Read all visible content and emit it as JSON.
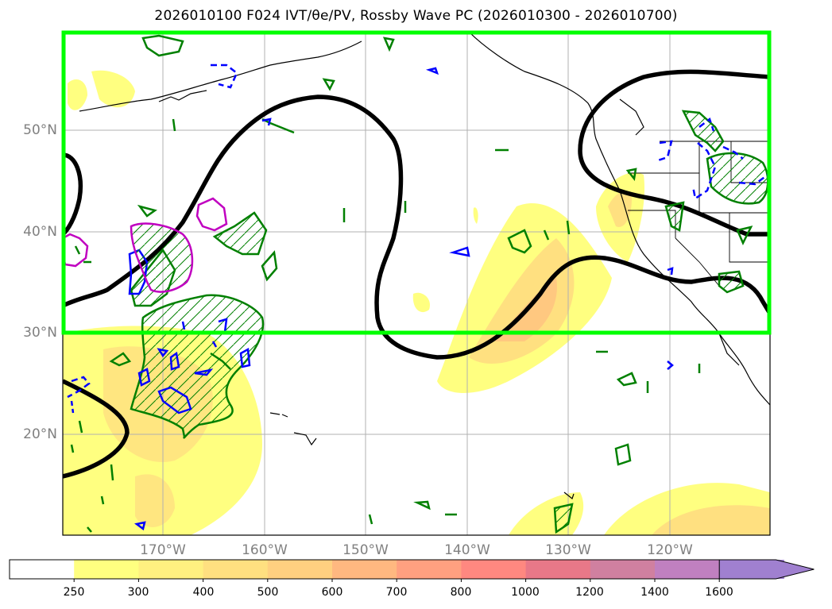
{
  "title": "2026010100 F024 IVT/θe/PV, Rossby Wave PC (2026010300 - 2026010700)",
  "map": {
    "lat_labels": [
      "50°N",
      "40°N",
      "30°N",
      "20°N"
    ],
    "lon_labels": [
      "170°W",
      "160°W",
      "150°W",
      "140°W",
      "130°W",
      "120°W"
    ],
    "highlight_box": {
      "lat_range": [
        30,
        60
      ],
      "lon_range": [
        -180,
        -110
      ],
      "color": "#00ff00"
    },
    "contour_colors": {
      "rossby_pc": "#000000",
      "pv": "#008000",
      "theta_e": "#0000ff",
      "other": "#c000c0"
    }
  },
  "colorbar": {
    "labels": [
      "250",
      "300",
      "400",
      "500",
      "600",
      "700",
      "800",
      "1000",
      "1200",
      "1400",
      "1600"
    ],
    "colors": [
      "#ffffff",
      "#ffff80",
      "#fff080",
      "#ffe080",
      "#ffd080",
      "#ffb880",
      "#ffa080",
      "#ff8880",
      "#e87888",
      "#d080a0",
      "#c080c0",
      "#a080d0"
    ]
  }
}
